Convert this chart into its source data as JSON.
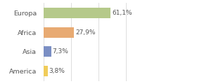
{
  "categories": [
    "Europa",
    "Africa",
    "Asia",
    "America"
  ],
  "values": [
    61.1,
    27.9,
    7.3,
    3.8
  ],
  "labels": [
    "61,1%",
    "27,9%",
    "7,3%",
    "3,8%"
  ],
  "bar_colors": [
    "#b5c98a",
    "#e8aa72",
    "#7b8fc4",
    "#f0cc5a"
  ],
  "background_color": "#ffffff",
  "xlim": [
    0,
    100
  ],
  "grid_color": "#d0d0d0"
}
